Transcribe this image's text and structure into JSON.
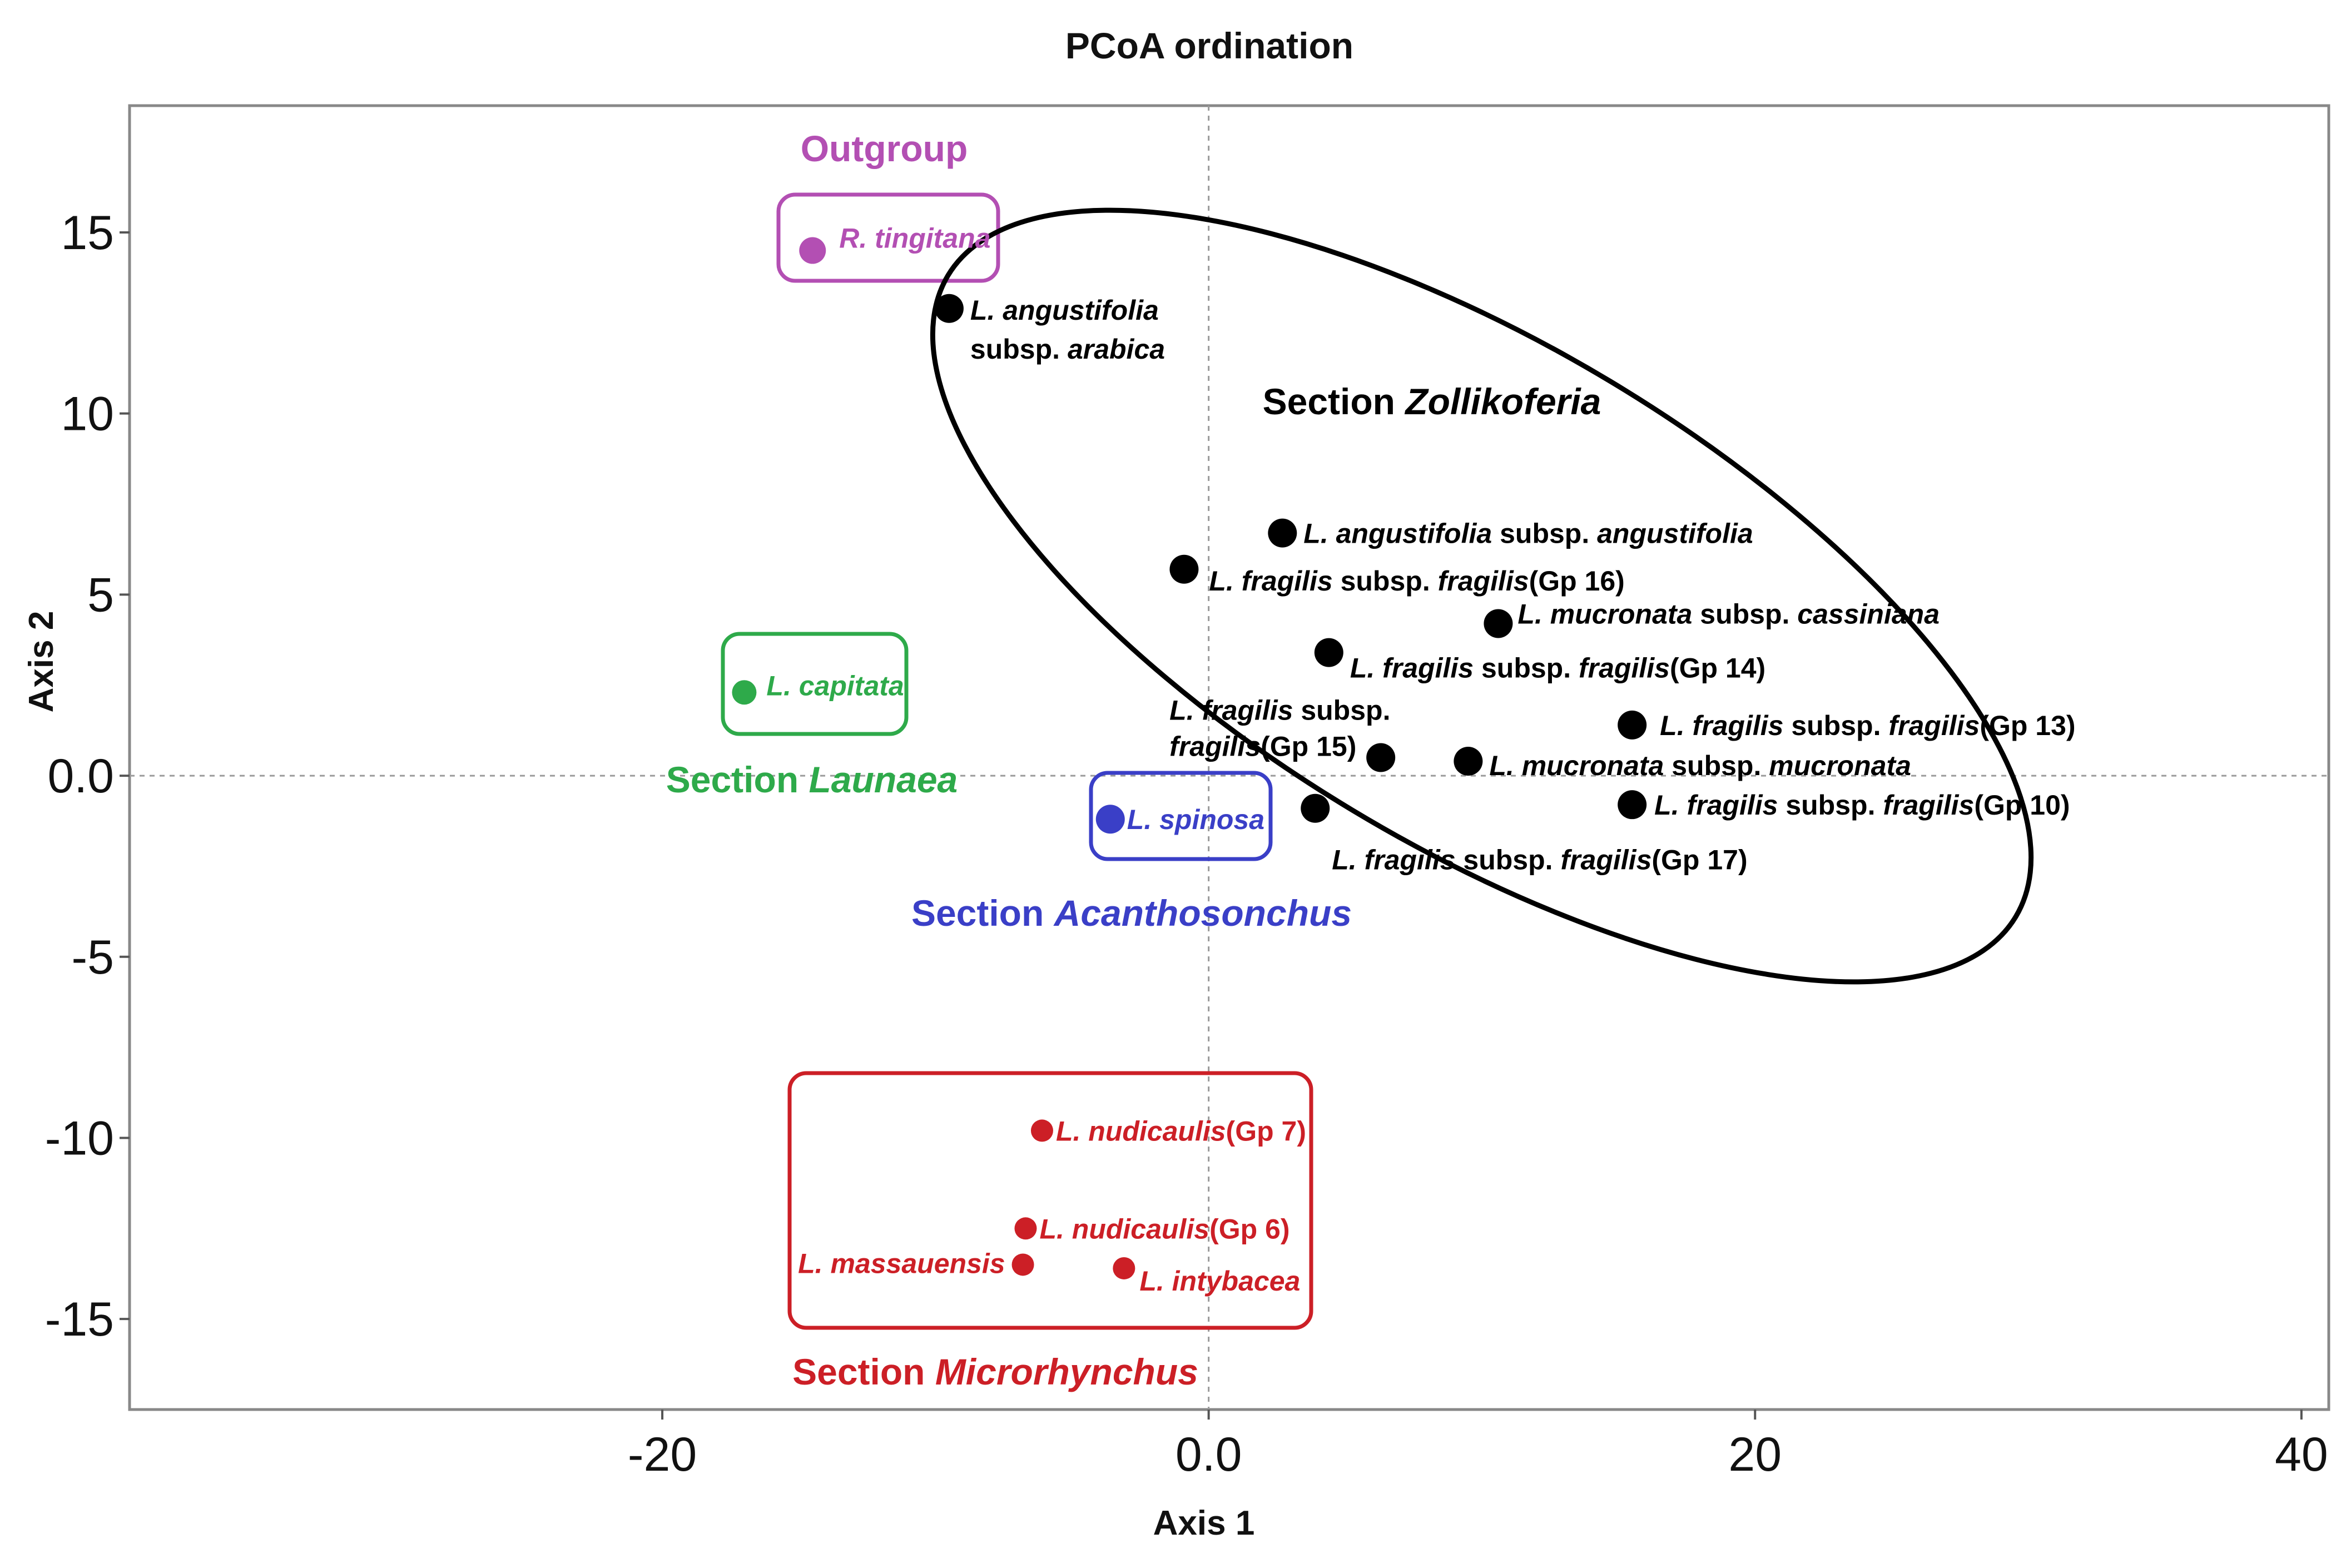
{
  "chart_data": {
    "type": "scatter",
    "title": "PCoA ordination",
    "xlabel": "Axis 1",
    "ylabel": "Axis 2",
    "xlim": [
      -39.5,
      41
    ],
    "ylim": [
      -17.5,
      18.5
    ],
    "grid": false,
    "reference_lines": {
      "x": 0,
      "y": 0,
      "style": "dotted"
    },
    "xticks": [
      {
        "value": -20,
        "label": "-20"
      },
      {
        "value": 0,
        "label": "0.0"
      },
      {
        "value": 20,
        "label": "20"
      },
      {
        "value": 40,
        "label": "40"
      }
    ],
    "yticks": [
      {
        "value": 15,
        "label": "15"
      },
      {
        "value": 10,
        "label": "10"
      },
      {
        "value": 5,
        "label": "5"
      },
      {
        "value": 0,
        "label": "0.0"
      },
      {
        "value": -5,
        "label": "-5"
      },
      {
        "value": -10,
        "label": "-10"
      },
      {
        "value": -15,
        "label": "-15"
      }
    ],
    "groups": [
      {
        "id": "outgroup",
        "label": [
          "Outgroup"
        ],
        "color": "#b34fb3",
        "enclosure": "rounded-rect",
        "points": [
          {
            "x": -14.5,
            "y": 14.5,
            "label": [
              {
                "t": "R. tingitana",
                "i": true
              }
            ]
          }
        ]
      },
      {
        "id": "launaea",
        "label": [
          "Section ",
          "Launaea"
        ],
        "color": "#2eaa4a",
        "enclosure": "rounded-rect",
        "points": [
          {
            "x": -17,
            "y": 2.3,
            "label": [
              {
                "t": "L. capitata",
                "i": true
              }
            ]
          }
        ]
      },
      {
        "id": "acanthosonchus",
        "label": [
          "Section ",
          "Acanthosonchus"
        ],
        "color": "#3a3fc7",
        "enclosure": "rounded-rect",
        "points": [
          {
            "x": -3.6,
            "y": -1.2,
            "label": [
              {
                "t": "L. spinosa",
                "i": true
              }
            ]
          }
        ]
      },
      {
        "id": "zollikoferia",
        "label": [
          "Section ",
          "Zollikoferia"
        ],
        "color": "#000000",
        "enclosure": "ellipse",
        "points": [
          {
            "x": -9.5,
            "y": 12.9,
            "label": [
              {
                "t": "L. angustifolia",
                "i": true
              }
            ],
            "label2": [
              {
                "t": "subsp. ",
                "i": false
              },
              {
                "t": "arabica",
                "i": true
              }
            ]
          },
          {
            "x": 2.7,
            "y": 6.7,
            "label": [
              {
                "t": "L. angustifolia",
                "i": true
              },
              {
                "t": " subsp. ",
                "i": false
              },
              {
                "t": "angustifolia",
                "i": true
              }
            ]
          },
          {
            "x": -0.9,
            "y": 5.7,
            "label": [
              {
                "t": "L. fragilis",
                "i": true
              },
              {
                "t": " subsp. ",
                "i": false
              },
              {
                "t": "fragilis",
                "i": true
              },
              {
                "t": "(Gp 16)",
                "i": false
              }
            ]
          },
          {
            "x": 10.6,
            "y": 4.2,
            "label": [
              {
                "t": "L. mucronata",
                "i": true
              },
              {
                "t": " subsp. ",
                "i": false
              },
              {
                "t": "cassiniana",
                "i": true
              }
            ]
          },
          {
            "x": 4.4,
            "y": 3.4,
            "label": [
              {
                "t": "L. fragilis",
                "i": true
              },
              {
                "t": " subsp. ",
                "i": false
              },
              {
                "t": "fragilis",
                "i": true
              },
              {
                "t": "(Gp 14)",
                "i": false
              }
            ]
          },
          {
            "x": 15.5,
            "y": 1.4,
            "label": [
              {
                "t": "L. fragilis",
                "i": true
              },
              {
                "t": " subsp. ",
                "i": false
              },
              {
                "t": "fragilis",
                "i": true
              },
              {
                "t": "(Gp 13)",
                "i": false
              }
            ]
          },
          {
            "x": 6.3,
            "y": 0.5,
            "label": [
              {
                "t": "L. fragilis",
                "i": true
              },
              {
                "t": " subsp.",
                "i": false
              }
            ],
            "label2": [
              {
                "t": "fragilis",
                "i": true
              },
              {
                "t": "(Gp 15)",
                "i": false
              }
            ]
          },
          {
            "x": 9.5,
            "y": 0.4,
            "label": [
              {
                "t": "L. mucronata",
                "i": true
              },
              {
                "t": " subsp. ",
                "i": false
              },
              {
                "t": "mucronata",
                "i": true
              }
            ]
          },
          {
            "x": 15.5,
            "y": -0.8,
            "label": [
              {
                "t": "L. fragilis",
                "i": true
              },
              {
                "t": " subsp. ",
                "i": false
              },
              {
                "t": "fragilis",
                "i": true
              },
              {
                "t": "(Gp 10)",
                "i": false
              }
            ]
          },
          {
            "x": 3.9,
            "y": -0.9,
            "label": [
              {
                "t": "L. fragilis",
                "i": true
              },
              {
                "t": " subsp. ",
                "i": false
              },
              {
                "t": "fragilis",
                "i": true
              },
              {
                "t": "(Gp 17)",
                "i": false
              }
            ]
          }
        ]
      },
      {
        "id": "microrhynchus",
        "label": [
          "Section ",
          "Microrhynchus"
        ],
        "color": "#cc1f26",
        "enclosure": "rounded-rect",
        "points": [
          {
            "x": -6.1,
            "y": -9.8,
            "label": [
              {
                "t": "L. nudicaulis",
                "i": true
              },
              {
                "t": "(Gp 7)",
                "i": false
              }
            ]
          },
          {
            "x": -6.7,
            "y": -12.5,
            "label": [
              {
                "t": "L. nudicaulis",
                "i": true
              },
              {
                "t": "(Gp 6)",
                "i": false
              }
            ]
          },
          {
            "x": -6.8,
            "y": -13.5,
            "label": [
              {
                "t": "L. massauensis",
                "i": true
              }
            ]
          },
          {
            "x": -3.1,
            "y": -13.6,
            "label": [
              {
                "t": "L. intybacea",
                "i": true
              }
            ]
          }
        ]
      }
    ]
  }
}
